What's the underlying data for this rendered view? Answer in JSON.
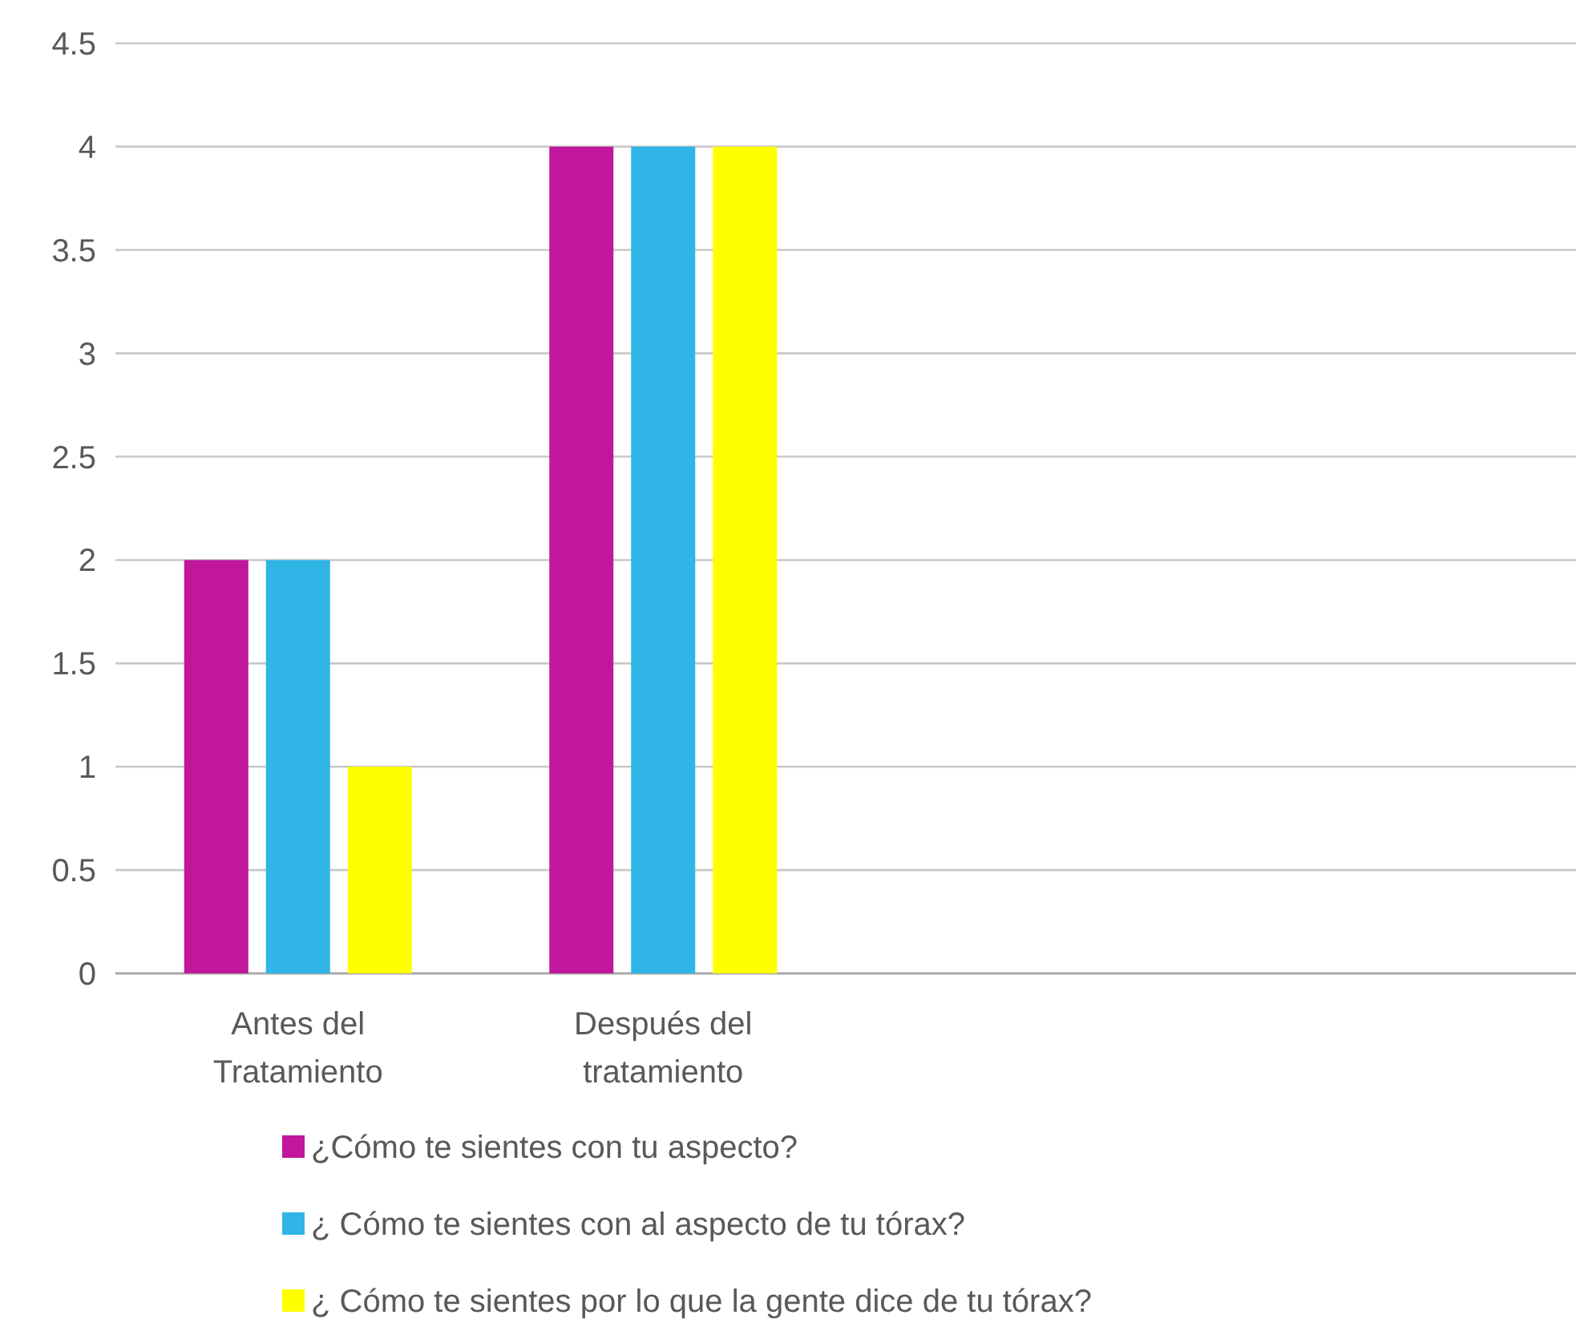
{
  "chart_data": {
    "type": "bar",
    "categories": [
      "Antes del\nTratamiento",
      "Después del\ntratamiento",
      null,
      null
    ],
    "series": [
      {
        "name": "¿Cómo te sientes con tu aspecto?",
        "color": "#c0179c",
        "values": [
          2,
          4,
          null,
          null
        ]
      },
      {
        "name": "¿ Cómo te sientes con al aspecto de tu tórax?",
        "color": "#31b5e6",
        "values": [
          2,
          4,
          null,
          null
        ]
      },
      {
        "name": "¿ Cómo te sientes por lo que la gente dice de tu tórax?",
        "color": "#ffff00",
        "values": [
          1,
          4,
          null,
          null
        ]
      }
    ],
    "ylim": [
      0,
      4.5
    ],
    "yticks": [
      0,
      0.5,
      1,
      1.5,
      2,
      2.5,
      3,
      3.5,
      4,
      4.5
    ],
    "grid": "y",
    "legend": "bottom"
  }
}
